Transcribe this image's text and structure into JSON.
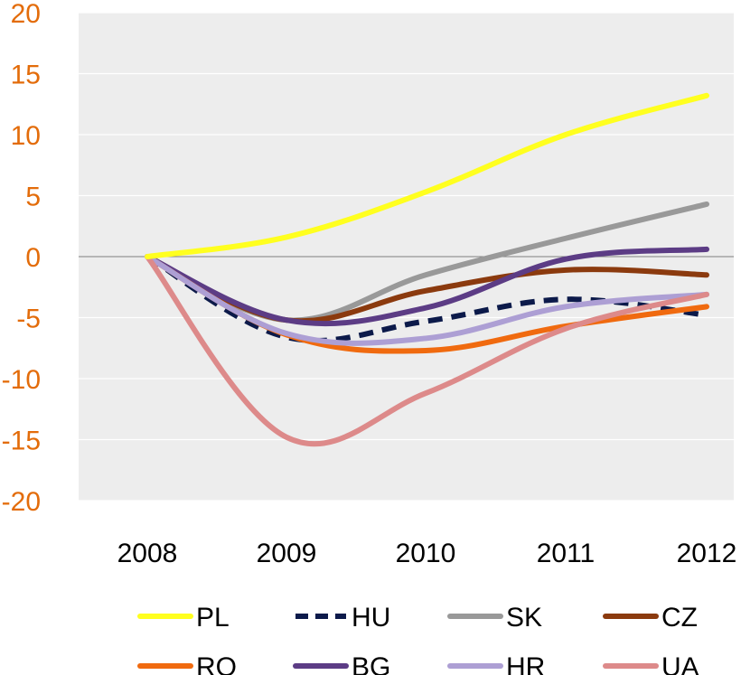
{
  "chart_data": {
    "type": "line",
    "title": "",
    "xlabel": "",
    "ylabel": "",
    "x": [
      "2008",
      "2009",
      "2010",
      "2011",
      "2012"
    ],
    "ylim": [
      -20,
      20
    ],
    "yticks": [
      "20",
      "15",
      "10",
      "5",
      "0",
      "-5",
      "-10",
      "-15",
      "-20"
    ],
    "grid": true,
    "legend_position": "bottom",
    "series": [
      {
        "name": "PL",
        "color": "#ffff1f",
        "dashed": false,
        "values": [
          0,
          1.6,
          5.3,
          10.0,
          13.2
        ]
      },
      {
        "name": "HU",
        "color": "#0c1a4a",
        "dashed": true,
        "values": [
          0,
          -6.6,
          -5.3,
          -3.5,
          -4.8
        ]
      },
      {
        "name": "SK",
        "color": "#999999",
        "dashed": false,
        "values": [
          0,
          -5.2,
          -1.5,
          1.5,
          4.3
        ]
      },
      {
        "name": "CZ",
        "color": "#8b3a0e",
        "dashed": false,
        "values": [
          0,
          -5.2,
          -2.8,
          -1.1,
          -1.5
        ]
      },
      {
        "name": "RO",
        "color": "#f06a0f",
        "dashed": false,
        "values": [
          0,
          -6.4,
          -7.7,
          -5.7,
          -4.1
        ]
      },
      {
        "name": "BG",
        "color": "#5c3c85",
        "dashed": false,
        "values": [
          0,
          -5.2,
          -4.2,
          -0.2,
          0.6
        ]
      },
      {
        "name": "HR",
        "color": "#ad9fd4",
        "dashed": false,
        "values": [
          0,
          -6.3,
          -6.7,
          -4.1,
          -3.1
        ]
      },
      {
        "name": "UA",
        "color": "#dd8a8a",
        "dashed": false,
        "values": [
          0,
          -14.8,
          -11.2,
          -5.9,
          -3.1
        ]
      }
    ]
  }
}
